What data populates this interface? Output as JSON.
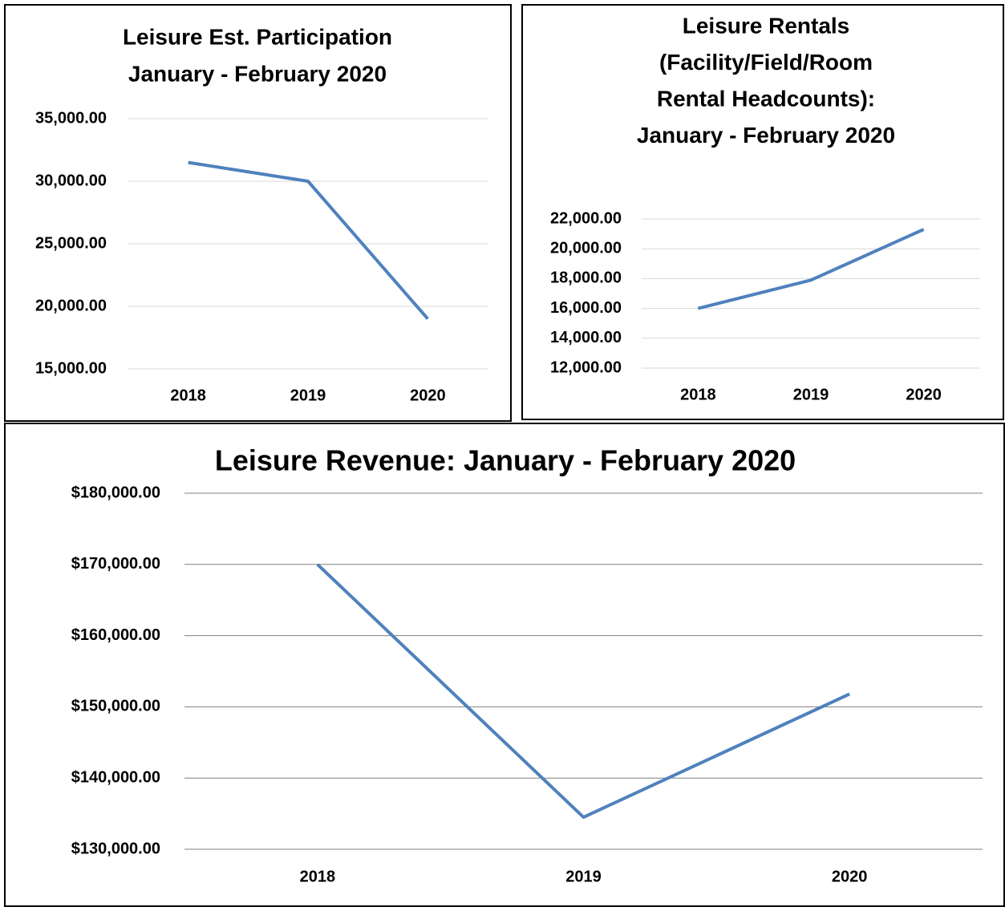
{
  "chart_data": [
    {
      "type": "line",
      "title": [
        "Leisure Est. Participation",
        "January - February 2020"
      ],
      "categories": [
        "2018",
        "2019",
        "2020"
      ],
      "series": [
        {
          "color": "#4f81bd",
          "values": [
            31500,
            30000,
            19000
          ]
        }
      ],
      "ylim": [
        15000,
        35000
      ],
      "yticks": [
        {
          "value": 15000,
          "label": "15,000.00"
        },
        {
          "value": 20000,
          "label": "20,000.00"
        },
        {
          "value": 25000,
          "label": "25,000.00"
        },
        {
          "value": 30000,
          "label": "30,000.00"
        },
        {
          "value": 35000,
          "label": "35,000.00"
        }
      ],
      "grid": true
    },
    {
      "type": "line",
      "title": [
        "Leisure Rentals",
        "(Facility/Field/Room",
        "Rental Headcounts):",
        "January - February 2020"
      ],
      "categories": [
        "2018",
        "2019",
        "2020"
      ],
      "series": [
        {
          "color": "#4f81bd",
          "values": [
            16000,
            17900,
            21300
          ]
        }
      ],
      "ylim": [
        12000,
        22000
      ],
      "yticks": [
        {
          "value": 12000,
          "label": "12,000.00"
        },
        {
          "value": 14000,
          "label": "14,000.00"
        },
        {
          "value": 16000,
          "label": "16,000.00"
        },
        {
          "value": 18000,
          "label": "18,000.00"
        },
        {
          "value": 20000,
          "label": "20,000.00"
        },
        {
          "value": 22000,
          "label": "22,000.00"
        }
      ],
      "grid": true
    },
    {
      "type": "line",
      "title": [
        "Leisure Revenue: January - February 2020"
      ],
      "categories": [
        "2018",
        "2019",
        "2020"
      ],
      "series": [
        {
          "color": "#4f81bd",
          "values": [
            170000,
            134500,
            151800
          ]
        }
      ],
      "ylim": [
        130000,
        180000
      ],
      "yticks": [
        {
          "value": 130000,
          "label": "$130,000.00"
        },
        {
          "value": 140000,
          "label": "$140,000.00"
        },
        {
          "value": 150000,
          "label": "$150,000.00"
        },
        {
          "value": 160000,
          "label": "$160,000.00"
        },
        {
          "value": 170000,
          "label": "$170,000.00"
        },
        {
          "value": 180000,
          "label": "$180,000.00"
        }
      ],
      "grid": true
    }
  ]
}
